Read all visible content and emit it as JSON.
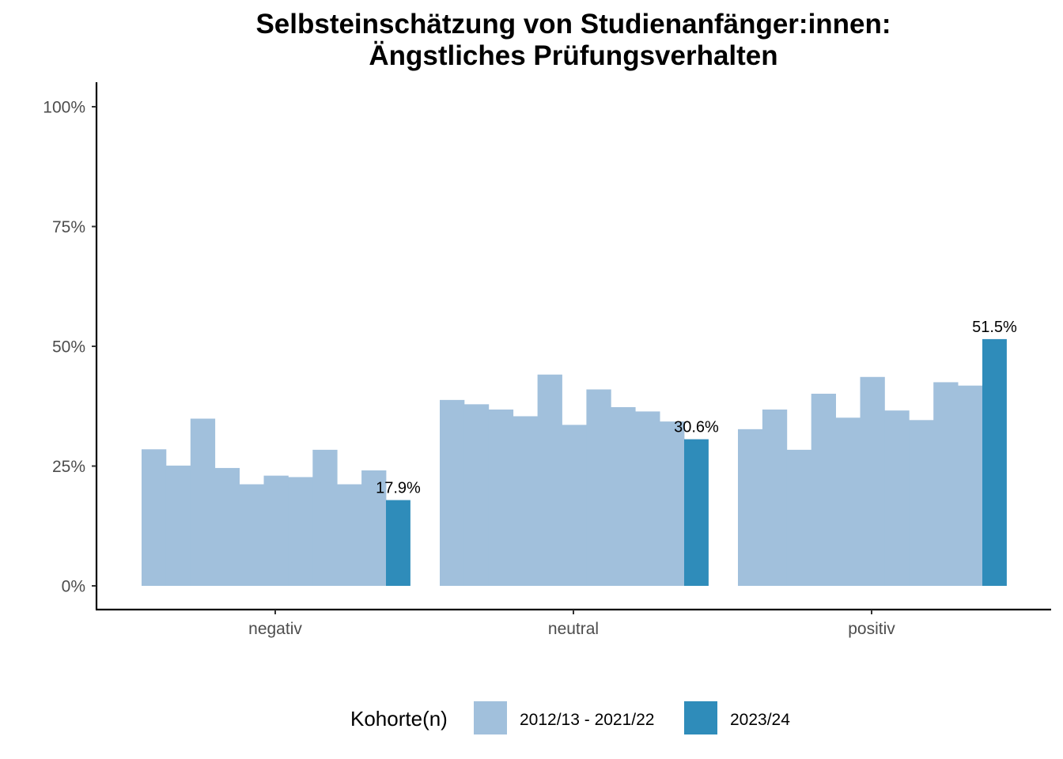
{
  "chart_data": {
    "type": "bar",
    "title_lines": [
      "Selbsteinschätzung von Studienanfänger:innen:",
      "Ängstliches Prüfungsverhalten"
    ],
    "xlabel": "",
    "ylabel": "",
    "ylim": [
      -0.05,
      1.05
    ],
    "y_ticks": [
      0,
      0.25,
      0.5,
      0.75,
      1.0
    ],
    "y_tick_labels": [
      "0%",
      "25%",
      "50%",
      "75%",
      "100%"
    ],
    "grid": false,
    "categories": [
      "negativ",
      "neutral",
      "positiv"
    ],
    "series": [
      {
        "name": "2012/13 - 2021/22",
        "color": "#a1c0dc",
        "values": [
          [
            0.285,
            0.251,
            0.349,
            0.246,
            0.212,
            0.23,
            0.227,
            0.284,
            0.212,
            0.241
          ],
          [
            0.388,
            0.379,
            0.368,
            0.354,
            0.441,
            0.336,
            0.41,
            0.373,
            0.364,
            0.343
          ],
          [
            0.327,
            0.368,
            0.284,
            0.401,
            0.351,
            0.436,
            0.366,
            0.346,
            0.425,
            0.418
          ]
        ]
      },
      {
        "name": "2023/24",
        "color": "#2f8cba",
        "values": [
          0.179,
          0.306,
          0.515
        ],
        "labels": [
          "17.9%",
          "30.6%",
          "51.5%"
        ]
      }
    ],
    "legend": {
      "position": "bottom",
      "title": "Kohorte(n)",
      "entries": [
        "2012/13 - 2021/22",
        "2023/24"
      ]
    }
  }
}
